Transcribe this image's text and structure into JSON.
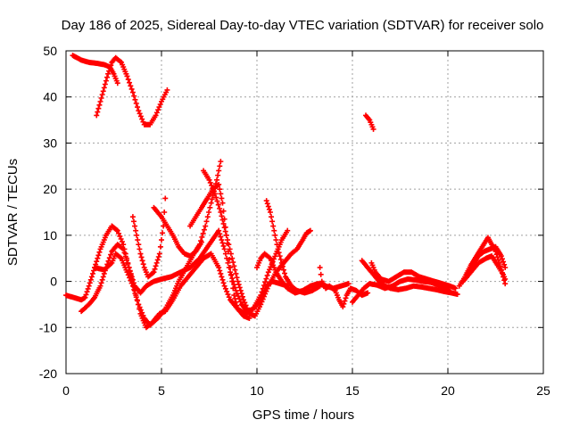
{
  "chart_data": {
    "type": "scatter",
    "title": "Day 186 of 2025, Sidereal Day-to-day VTEC variation (SDTVAR) for receiver solo",
    "xlabel": "GPS time / hours",
    "ylabel": "SDTVAR / TECUs",
    "xlim": [
      0,
      25
    ],
    "ylim": [
      -20,
      50
    ],
    "xticks": [
      0,
      5,
      10,
      15,
      20,
      25
    ],
    "xtick_labels": [
      "0",
      "5",
      "10",
      "15",
      "20",
      "25"
    ],
    "yticks": [
      -20,
      -10,
      0,
      10,
      20,
      30,
      40,
      50
    ],
    "ytick_labels": [
      "-20",
      "-10",
      "0",
      "10",
      "20",
      "30",
      "40",
      "50"
    ],
    "grid": true,
    "marker": "+",
    "series_color": "#ff0000",
    "series": [
      {
        "name": "s1",
        "points": [
          [
            0.35,
            49
          ],
          [
            0.8,
            48
          ],
          [
            1.2,
            47.5
          ],
          [
            1.6,
            47.3
          ],
          [
            2.0,
            47
          ],
          [
            2.3,
            46.5
          ],
          [
            2.5,
            45
          ],
          [
            2.7,
            43
          ]
        ]
      },
      {
        "name": "s2",
        "points": [
          [
            1.6,
            36
          ],
          [
            1.8,
            39
          ],
          [
            2.0,
            42
          ],
          [
            2.2,
            45
          ],
          [
            2.4,
            47.5
          ],
          [
            2.6,
            48.5
          ],
          [
            2.9,
            47.5
          ],
          [
            3.2,
            44.5
          ],
          [
            3.5,
            41
          ],
          [
            3.8,
            37
          ],
          [
            4.1,
            34
          ],
          [
            4.4,
            34
          ],
          [
            4.7,
            36
          ],
          [
            5.0,
            39
          ],
          [
            5.3,
            41.5
          ]
        ]
      },
      {
        "name": "s3",
        "points": [
          [
            15.7,
            36
          ],
          [
            15.9,
            35
          ],
          [
            16.1,
            33
          ]
        ]
      },
      {
        "name": "s4",
        "points": [
          [
            0,
            -3
          ],
          [
            0.4,
            -3.5
          ],
          [
            0.8,
            -4
          ],
          [
            1.0,
            -3.5
          ],
          [
            1.2,
            -1
          ],
          [
            1.5,
            3
          ],
          [
            1.8,
            7
          ],
          [
            2.1,
            10
          ],
          [
            2.4,
            12
          ],
          [
            2.7,
            11
          ],
          [
            3.0,
            8
          ],
          [
            3.3,
            3
          ],
          [
            3.6,
            -1
          ],
          [
            3.9,
            -2.5
          ],
          [
            4.2,
            -1
          ],
          [
            4.6,
            0
          ],
          [
            5.0,
            0.5
          ],
          [
            5.5,
            1
          ],
          [
            6.0,
            2
          ],
          [
            6.5,
            3
          ],
          [
            7.0,
            5
          ],
          [
            7.5,
            8
          ],
          [
            8.0,
            11
          ],
          [
            8.3,
            7
          ],
          [
            8.6,
            2
          ],
          [
            8.9,
            -2
          ],
          [
            9.2,
            -5
          ],
          [
            9.5,
            -6.5
          ],
          [
            9.8,
            -6
          ],
          [
            10.2,
            -4
          ],
          [
            10.5,
            -1
          ],
          [
            10.8,
            0
          ],
          [
            11.2,
            -0.5
          ],
          [
            11.6,
            -1
          ]
        ]
      },
      {
        "name": "s5",
        "points": [
          [
            0.8,
            -6.5
          ],
          [
            1.2,
            -5
          ],
          [
            1.5,
            -3.5
          ],
          [
            1.8,
            -1
          ],
          [
            2.1,
            3
          ],
          [
            2.4,
            6.5
          ],
          [
            2.7,
            8
          ],
          [
            3.0,
            7
          ],
          [
            3.3,
            3
          ],
          [
            3.6,
            -2
          ],
          [
            3.9,
            -7
          ],
          [
            4.2,
            -10
          ],
          [
            4.5,
            -9
          ],
          [
            4.9,
            -7
          ],
          [
            5.2,
            -6.5
          ],
          [
            5.6,
            -4
          ],
          [
            6.0,
            -1
          ],
          [
            6.4,
            1
          ],
          [
            6.8,
            3
          ],
          [
            7.2,
            5
          ],
          [
            7.6,
            6
          ],
          [
            8.0,
            3
          ],
          [
            8.3,
            -1
          ],
          [
            8.6,
            -4
          ],
          [
            9.0,
            -6
          ],
          [
            9.4,
            -7
          ],
          [
            9.8,
            -6
          ],
          [
            10.2,
            -3
          ],
          [
            10.6,
            2
          ],
          [
            11.0,
            6
          ],
          [
            11.3,
            9
          ],
          [
            11.6,
            11
          ]
        ]
      },
      {
        "name": "s6",
        "points": [
          [
            1.5,
            3
          ],
          [
            2.0,
            2.5
          ],
          [
            2.4,
            4
          ],
          [
            2.6,
            6
          ],
          [
            2.9,
            5
          ],
          [
            3.2,
            2
          ],
          [
            3.5,
            -1
          ],
          [
            3.8,
            -5
          ],
          [
            4.1,
            -8
          ],
          [
            4.4,
            -9.5
          ],
          [
            4.8,
            -8
          ],
          [
            5.2,
            -6
          ],
          [
            5.6,
            -3
          ],
          [
            5.9,
            0
          ],
          [
            6.3,
            3
          ],
          [
            6.7,
            6
          ],
          [
            7.0,
            8
          ],
          [
            7.3,
            12
          ],
          [
            7.6,
            17
          ],
          [
            7.9,
            22
          ],
          [
            8.1,
            26
          ]
        ]
      },
      {
        "name": "s7",
        "points": [
          [
            3.5,
            14
          ],
          [
            3.7,
            10
          ],
          [
            3.9,
            6
          ],
          [
            4.1,
            3
          ],
          [
            4.3,
            1
          ],
          [
            4.6,
            2
          ],
          [
            4.9,
            6
          ],
          [
            5.1,
            12
          ],
          [
            5.2,
            18
          ]
        ]
      },
      {
        "name": "s8",
        "points": [
          [
            4.6,
            16
          ],
          [
            5.0,
            14
          ],
          [
            5.3,
            12
          ],
          [
            5.6,
            10
          ],
          [
            5.9,
            7.5
          ],
          [
            6.2,
            6
          ],
          [
            6.5,
            5.5
          ],
          [
            6.8,
            6.5
          ],
          [
            7.1,
            8.5
          ]
        ]
      },
      {
        "name": "s9",
        "points": [
          [
            7.2,
            24
          ],
          [
            7.5,
            22
          ],
          [
            7.8,
            19
          ],
          [
            8.1,
            15
          ],
          [
            8.4,
            10
          ],
          [
            8.7,
            5
          ],
          [
            9.0,
            0
          ],
          [
            9.3,
            -4
          ],
          [
            9.6,
            -7
          ],
          [
            9.9,
            -7.5
          ],
          [
            10.2,
            -5
          ],
          [
            10.6,
            -1
          ],
          [
            11.0,
            2
          ],
          [
            11.4,
            4
          ],
          [
            11.8,
            6
          ],
          [
            12.1,
            7
          ],
          [
            12.4,
            9
          ],
          [
            12.6,
            10.5
          ],
          [
            12.8,
            11
          ]
        ]
      },
      {
        "name": "s10",
        "points": [
          [
            6.5,
            12
          ],
          [
            6.8,
            14
          ],
          [
            7.1,
            16
          ],
          [
            7.4,
            18
          ],
          [
            7.7,
            20
          ],
          [
            8.0,
            21
          ],
          [
            8.2,
            17
          ],
          [
            8.4,
            10
          ],
          [
            8.6,
            3
          ],
          [
            8.8,
            -3
          ],
          [
            9.0,
            -6
          ],
          [
            9.3,
            -7.5
          ],
          [
            9.6,
            -8
          ]
        ]
      },
      {
        "name": "s11",
        "points": [
          [
            10.0,
            3
          ],
          [
            10.2,
            5
          ],
          [
            10.4,
            6
          ],
          [
            10.7,
            5
          ],
          [
            11.0,
            2
          ],
          [
            11.3,
            0
          ],
          [
            11.6,
            -1.5
          ],
          [
            12.0,
            -2.5
          ],
          [
            12.4,
            -2
          ],
          [
            12.8,
            -1
          ],
          [
            13.2,
            -0.5
          ],
          [
            13.6,
            -1
          ],
          [
            14.0,
            -1.5
          ],
          [
            14.4,
            -1
          ],
          [
            14.8,
            -0.5
          ]
        ]
      },
      {
        "name": "s12",
        "points": [
          [
            10.5,
            17.5
          ],
          [
            10.7,
            15
          ],
          [
            10.9,
            11
          ],
          [
            11.1,
            7
          ],
          [
            11.3,
            4
          ],
          [
            11.5,
            1
          ],
          [
            11.8,
            -1
          ],
          [
            12.1,
            -2
          ],
          [
            12.5,
            -2.5
          ],
          [
            12.9,
            -2
          ],
          [
            13.3,
            -1
          ]
        ]
      },
      {
        "name": "s13",
        "points": [
          [
            13.3,
            3
          ],
          [
            13.4,
            0
          ],
          [
            13.6,
            -1.5
          ],
          [
            13.8,
            -1
          ],
          [
            14.1,
            -2
          ],
          [
            14.3,
            -4
          ],
          [
            14.5,
            -5.5
          ],
          [
            14.7,
            -3
          ],
          [
            14.9,
            -1.5
          ],
          [
            15.2,
            -2
          ],
          [
            15.5,
            -3
          ],
          [
            15.8,
            -2.5
          ]
        ]
      },
      {
        "name": "s14",
        "points": [
          [
            15.5,
            4.5
          ],
          [
            15.8,
            3
          ],
          [
            16.1,
            1.5
          ],
          [
            16.4,
            0
          ],
          [
            16.7,
            -1
          ],
          [
            17.0,
            -1.5
          ],
          [
            17.4,
            -1.8
          ],
          [
            17.8,
            -1.5
          ],
          [
            18.2,
            -1
          ],
          [
            18.6,
            -1.2
          ],
          [
            19.0,
            -1.5
          ],
          [
            19.4,
            -1.8
          ],
          [
            19.8,
            -2.2
          ],
          [
            20.2,
            -2.5
          ]
        ]
      },
      {
        "name": "s15",
        "points": [
          [
            15.0,
            -4.5
          ],
          [
            15.3,
            -3
          ],
          [
            15.6,
            -1.5
          ],
          [
            15.9,
            -0.5
          ],
          [
            16.3,
            -0.8
          ],
          [
            16.7,
            -1.5
          ],
          [
            17.1,
            -1
          ],
          [
            17.5,
            0
          ],
          [
            17.9,
            0.5
          ],
          [
            18.3,
            0.3
          ],
          [
            18.7,
            0
          ],
          [
            19.1,
            -0.2
          ],
          [
            19.5,
            -0.8
          ],
          [
            19.9,
            -1.5
          ],
          [
            20.2,
            -2.5
          ],
          [
            20.5,
            -2.8
          ]
        ]
      },
      {
        "name": "s16",
        "points": [
          [
            16.0,
            4
          ],
          [
            16.2,
            2
          ],
          [
            16.5,
            0.5
          ],
          [
            16.9,
            0
          ],
          [
            17.3,
            1
          ],
          [
            17.7,
            2
          ],
          [
            18.1,
            2
          ],
          [
            18.5,
            1
          ],
          [
            18.9,
            0.5
          ],
          [
            19.3,
            0
          ],
          [
            19.7,
            -0.5
          ],
          [
            20.1,
            -1
          ],
          [
            20.4,
            -1.5
          ]
        ]
      },
      {
        "name": "s17",
        "points": [
          [
            20.6,
            -1
          ],
          [
            20.9,
            1
          ],
          [
            21.2,
            3.5
          ],
          [
            21.5,
            5.5
          ],
          [
            21.8,
            7.5
          ],
          [
            22.1,
            9.5
          ],
          [
            22.3,
            8
          ],
          [
            22.5,
            6.5
          ],
          [
            22.7,
            4
          ],
          [
            22.9,
            1
          ],
          [
            23.0,
            -0.5
          ]
        ]
      },
      {
        "name": "s18",
        "points": [
          [
            21.0,
            1.5
          ],
          [
            21.3,
            3.5
          ],
          [
            21.6,
            5.5
          ],
          [
            21.9,
            6.5
          ],
          [
            22.2,
            7
          ],
          [
            22.5,
            7.5
          ],
          [
            22.8,
            5.5
          ],
          [
            23.0,
            3
          ]
        ]
      },
      {
        "name": "s19",
        "points": [
          [
            20.8,
            0
          ],
          [
            21.2,
            2
          ],
          [
            21.6,
            4
          ],
          [
            22.0,
            5
          ],
          [
            22.3,
            5.5
          ],
          [
            22.6,
            3.5
          ],
          [
            22.9,
            1.5
          ],
          [
            23.0,
            0.5
          ]
        ]
      }
    ]
  }
}
